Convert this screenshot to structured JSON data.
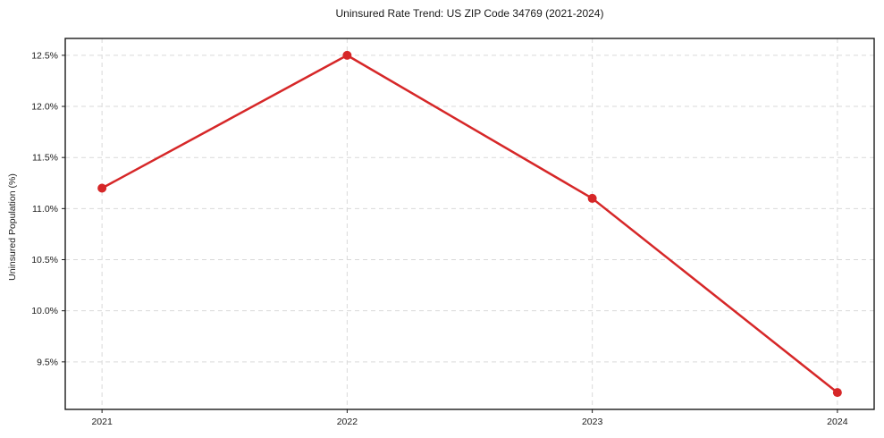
{
  "chart_data": {
    "type": "line",
    "title": "Uninsured Rate Trend: US ZIP Code 34769 (2021-2024)",
    "xlabel": "",
    "ylabel": "Uninsured Population (%)",
    "x": [
      2021,
      2022,
      2023,
      2024
    ],
    "series": [
      {
        "name": "Uninsured Population (%)",
        "values": [
          11.2,
          12.5,
          11.1,
          9.2
        ]
      }
    ],
    "xtick_labels": [
      "2021",
      "2022",
      "2023",
      "2024"
    ],
    "ytick_values": [
      9.5,
      10.0,
      10.5,
      11.0,
      11.5,
      12.0,
      12.5
    ],
    "ytick_labels": [
      "9.5%",
      "10.0%",
      "10.5%",
      "11.0%",
      "11.5%",
      "12.0%",
      "12.5%"
    ],
    "xlim": [
      2020.85,
      2024.15
    ],
    "ylim": [
      9.035,
      12.665
    ],
    "grid": true,
    "grid_style": "dashed",
    "legend_position": "none",
    "colors": {
      "line": "#d62728",
      "marker": "#d62728",
      "grid": "#d9d9d9",
      "axis": "#1a1a1a",
      "background": "#ffffff"
    }
  }
}
